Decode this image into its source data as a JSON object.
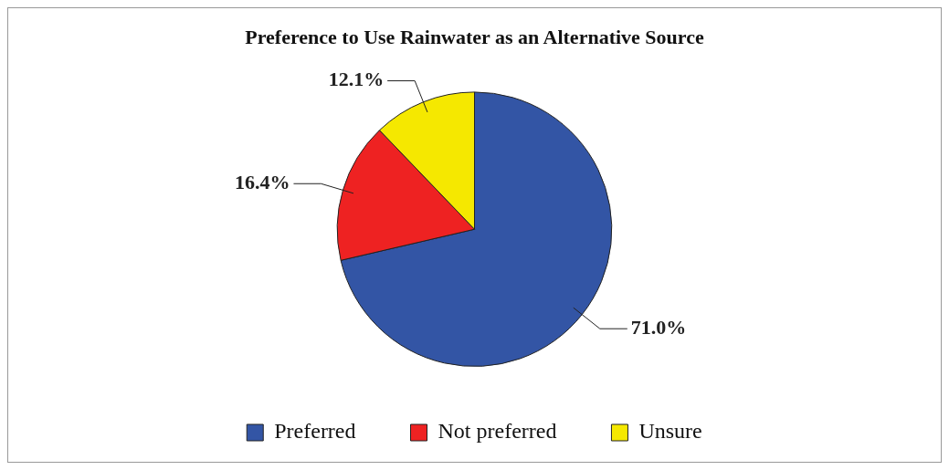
{
  "chart_data": {
    "type": "pie",
    "title": "Preference to Use Rainwater as an Alternative Source",
    "categories": [
      "Preferred",
      "Not preferred",
      "Unsure"
    ],
    "values": [
      71.0,
      16.4,
      12.1
    ],
    "colors": [
      "#3355a5",
      "#ee2222",
      "#f5e800"
    ],
    "value_labels": [
      "71.0%",
      "16.4%",
      "12.1%"
    ],
    "legend": "bottom"
  }
}
